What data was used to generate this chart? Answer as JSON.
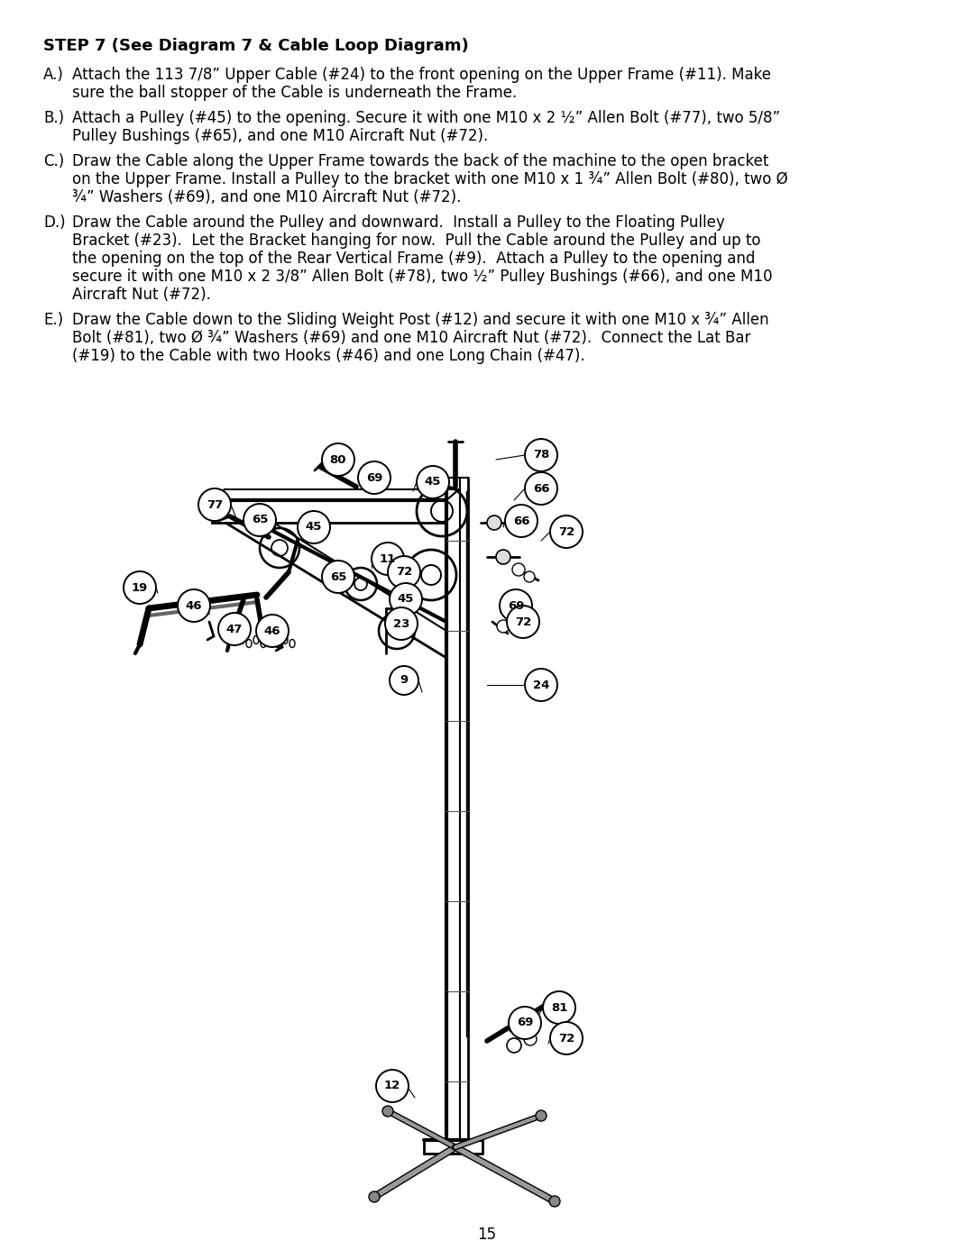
{
  "title_bold": "STEP 7 (See Diagram 7 & Cable Loop Diagram)",
  "paragraphs": [
    {
      "label": "A.)",
      "text": "Attach the 113 7/8” Upper Cable (#24) to the front opening on the Upper Frame (#11). Make\nsure the ball stopper of the Cable is underneath the Frame."
    },
    {
      "label": "B.)",
      "text": "Attach a Pulley (#45) to the opening. Secure it with one M10 x 2 ½” Allen Bolt (#77), two 5/8”\nPulley Bushings (#65), and one M10 Aircraft Nut (#72)."
    },
    {
      "label": "C.)",
      "text": "Draw the Cable along the Upper Frame towards the back of the machine to the open bracket\non the Upper Frame. Install a Pulley to the bracket with one M10 x 1 ¾” Allen Bolt (#80), two Ø\n¾” Washers (#69), and one M10 Aircraft Nut (#72)."
    },
    {
      "label": "D.)",
      "text": "Draw the Cable around the Pulley and downward.  Install a Pulley to the Floating Pulley\nBracket (#23).  Let the Bracket hanging for now.  Pull the Cable around the Pulley and up to\nthe opening on the top of the Rear Vertical Frame (#9).  Attach a Pulley to the opening and\nsecure it with one M10 x 2 3/8” Allen Bolt (#78), two ½” Pulley Bushings (#66), and one M10\nAircraft Nut (#72)."
    },
    {
      "label": "E.)",
      "text": "Draw the Cable down to the Sliding Weight Post (#12) and secure it with one M10 x ¾” Allen\nBolt (#81), two Ø ¾” Washers (#69) and one M10 Aircraft Nut (#72).  Connect the Lat Bar\n(#19) to the Cable with two Hooks (#46) and one Long Chain (#47)."
    }
  ],
  "page_number": "15",
  "bg_color": "#ffffff",
  "text_color": "#000000"
}
